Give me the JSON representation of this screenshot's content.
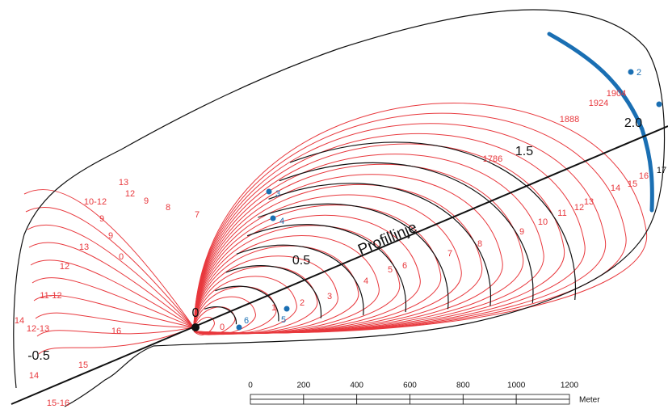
{
  "profile_line": {
    "label": "Profillinje",
    "distance_marks": [
      "-0.5",
      "0",
      "0.5",
      "1.5",
      "2.0"
    ]
  },
  "contour_labels": [
    "13",
    "10-12",
    "12",
    "9",
    "8",
    "7",
    "9",
    "9",
    "13",
    "0",
    "12",
    "11-12",
    "14",
    "12-13",
    "16",
    "14",
    "15",
    "15-16",
    "0",
    "1",
    "2",
    "3",
    "4",
    "5",
    "6",
    "7",
    "8",
    "9",
    "10",
    "11",
    "12",
    "13",
    "14",
    "15",
    "16"
  ],
  "year_labels": [
    "1786",
    "1888",
    "1904",
    "1924",
    "17"
  ],
  "measurement_points": [
    "2",
    "3",
    "4",
    "5",
    "6"
  ],
  "scale_bar": {
    "ticks": [
      "0",
      "200",
      "400",
      "600",
      "800",
      "1000",
      "1200"
    ],
    "unit": "Meter"
  }
}
